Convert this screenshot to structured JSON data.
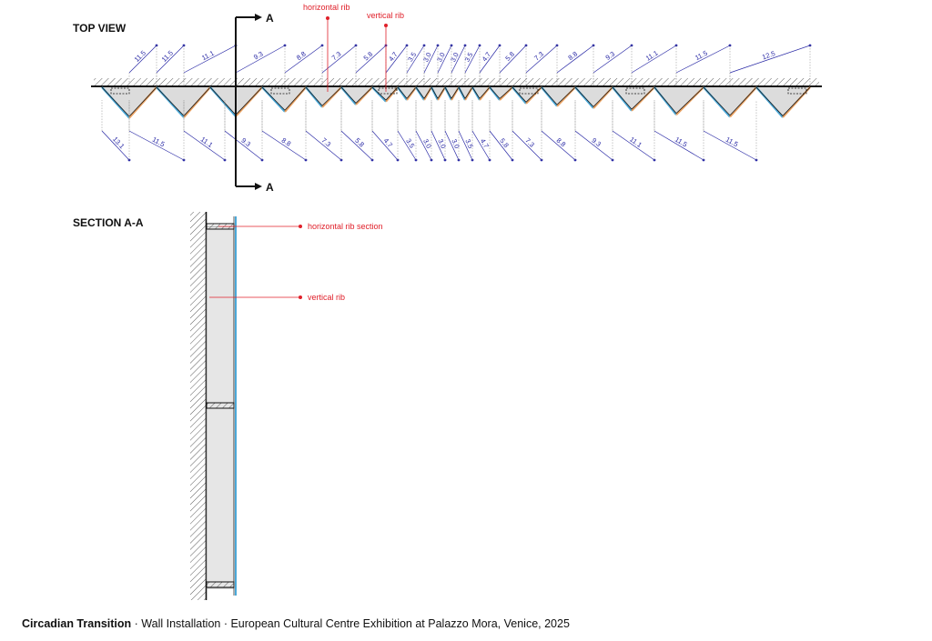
{
  "top_view": {
    "title": "TOP VIEW",
    "section_mark": "A",
    "callouts": {
      "horizontal_rib": "horizontal rib",
      "vertical_rib": "vertical rib"
    },
    "upper_dims": [
      "11.5",
      "11.5",
      "11.1",
      "9.3",
      "8.8",
      "7.3",
      "5.8",
      "4.7",
      "3.5",
      "3.0",
      "3.0",
      "3.0",
      "3.5",
      "4.7",
      "5.8",
      "7.3",
      "8.8",
      "9.3",
      "11.1",
      "11.5",
      "12.5"
    ],
    "lower_dims": [
      "13.1",
      "11.5",
      "11.1",
      "9.3",
      "8.8",
      "7.3",
      "5.8",
      "4.7",
      "3.5",
      "3.0",
      "3.0",
      "3.0",
      "3.5",
      "4.7",
      "5.8",
      "7.3",
      "8.8",
      "9.3",
      "11.1",
      "11.5",
      "11.5"
    ]
  },
  "section": {
    "title": "SECTION A-A",
    "callouts": {
      "horizontal_rib_section": "horizontal rib section",
      "vertical_rib": "vertical rib"
    }
  },
  "caption": {
    "title": "Circadian Transition",
    "rest": " · Wall Installation · European Cultural Centre Exhibition at Palazzo Mora, Venice, 2025"
  },
  "colors": {
    "dimension": "#2a2aa6",
    "annotation": "#e0202a",
    "fill": "#dcdcdc",
    "outer_face": "#4aa8d8",
    "inner_face": "#e8a060",
    "line": "#1a1a1a"
  }
}
